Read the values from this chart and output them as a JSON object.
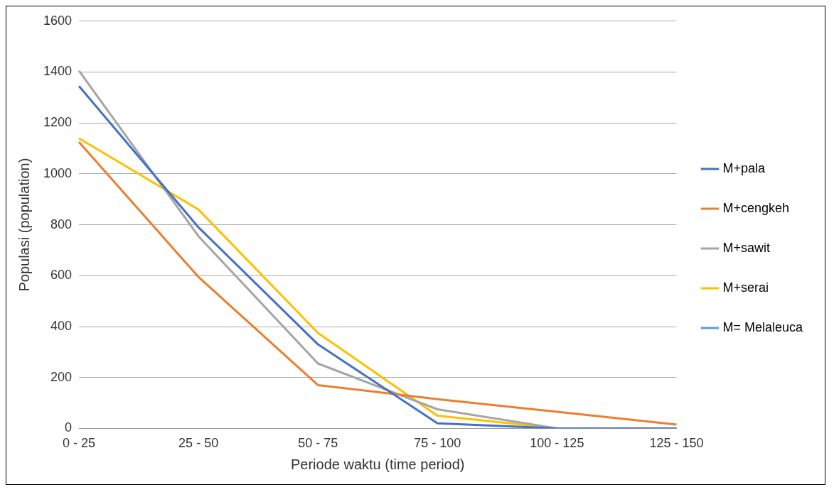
{
  "chart_data": {
    "type": "line",
    "xlabel": "Periode waktu (time period)",
    "ylabel": "Populasi (population)",
    "categories": [
      "0 - 25",
      "25 - 50",
      "50 - 75",
      "75 - 100",
      "100 - 125",
      "125 - 150"
    ],
    "series": [
      {
        "name": "M+pala",
        "color": "#4472c4",
        "values": [
          1345,
          790,
          330,
          20,
          0,
          0
        ]
      },
      {
        "name": "M+cengkeh",
        "color": "#ed7d31",
        "values": [
          1125,
          595,
          170,
          115,
          65,
          15
        ]
      },
      {
        "name": "M+sawit",
        "color": "#a5a5a5",
        "values": [
          1405,
          755,
          255,
          75,
          0,
          0
        ]
      },
      {
        "name": "M+serai",
        "color": "#ffc000",
        "values": [
          1140,
          860,
          375,
          50,
          0,
          0
        ]
      },
      {
        "name": "M= Melaleuca",
        "color": "#5b9bd5",
        "values": [
          null,
          null,
          null,
          null,
          null,
          null
        ]
      }
    ],
    "ylim": [
      0,
      1600
    ],
    "yticks": [
      0,
      200,
      400,
      600,
      800,
      1000,
      1200,
      1400,
      1600
    ],
    "grid": "y",
    "legend": "right",
    "marker": "none",
    "line_style": "solid"
  }
}
